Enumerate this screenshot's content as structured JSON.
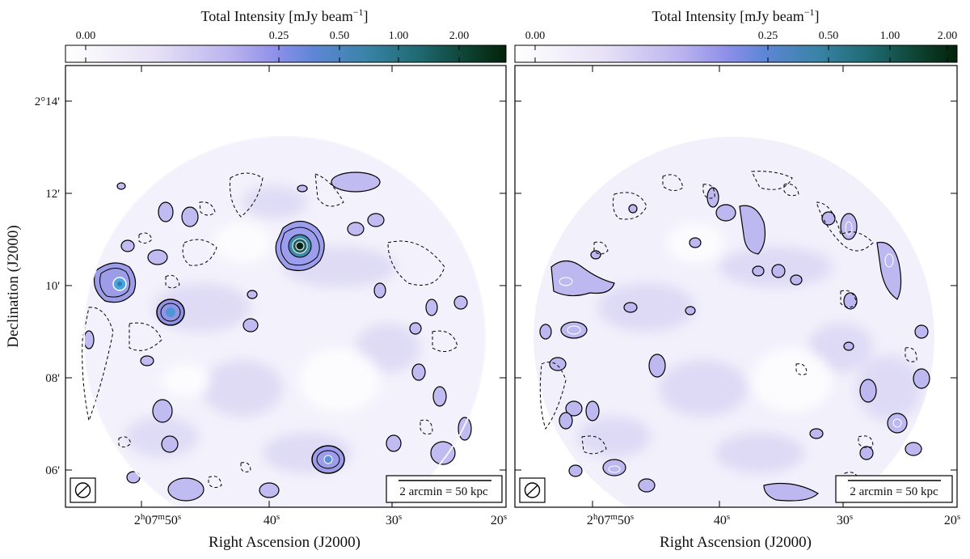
{
  "figure": {
    "y_axis_label": "Declination (J2000)",
    "y_ticks": [
      "2°14'",
      "12'",
      "10'",
      "08'",
      "06'"
    ],
    "colorbar_stops": [
      "#ffffff",
      "#e7e2f6",
      "#b9b2ef",
      "#8d8fe9",
      "#5f86d8",
      "#3a84a8",
      "#1f6a73",
      "#0c3f2d",
      "#04220a"
    ]
  },
  "panels": [
    {
      "colorbar_title": "Total Intensity [mJy beam",
      "colorbar_title_exp": "−1",
      "colorbar_title_close": "]",
      "colorbar_ticks": [
        "0.00",
        "0.25",
        "0.50",
        "1.00",
        "2.00"
      ],
      "x_axis_label": "Right Ascension (J2000)",
      "x_tick_main": "2",
      "x_tick_h": "h",
      "x_tick_min": "07",
      "x_tick_m": "m",
      "x_tick_sec": "50",
      "x_tick_s": "s",
      "x_ticks_rest": [
        "40",
        "30",
        "20"
      ],
      "scalebar_label": "2 arcmin = 50 kpc",
      "beam_icon": "hatched-ellipse-icon"
    },
    {
      "colorbar_title": "Total Intensity [mJy beam",
      "colorbar_title_exp": "−1",
      "colorbar_title_close": "]",
      "colorbar_ticks": [
        "0.00",
        "0.25",
        "0.50",
        "1.00",
        "2.00"
      ],
      "x_axis_label": "Right Ascension (J2000)",
      "x_tick_main": "2",
      "x_tick_h": "h",
      "x_tick_min": "07",
      "x_tick_m": "m",
      "x_tick_sec": "50",
      "x_tick_s": "s",
      "x_ticks_rest": [
        "40",
        "30",
        "20"
      ],
      "scalebar_label": "2 arcmin = 50 kpc",
      "beam_icon": "hatched-ellipse-icon"
    }
  ]
}
